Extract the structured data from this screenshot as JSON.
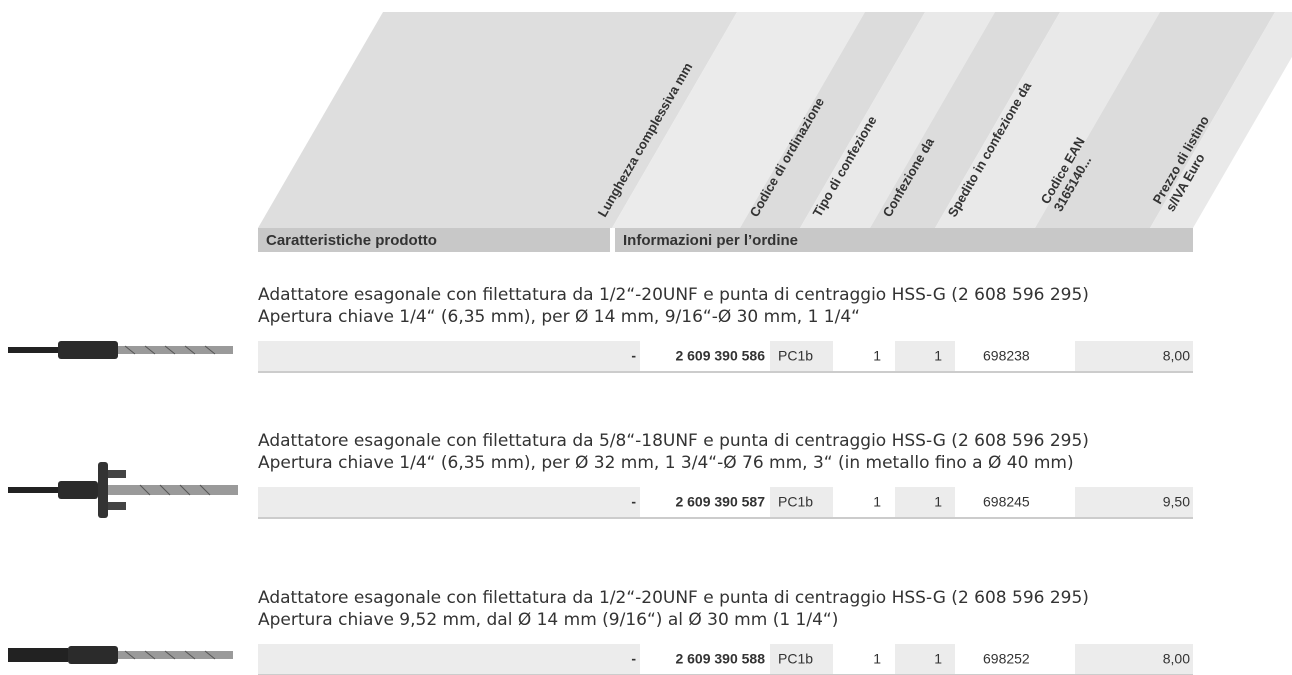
{
  "header": {
    "columns": [
      [
        "Lunghezza complessiva mm"
      ],
      [
        "Codice di ordinazione"
      ],
      [
        "Tipo di confezione"
      ],
      [
        "Confezione da"
      ],
      [
        "Spedito in confezione da"
      ],
      [
        "Codice EAN",
        "3165140..."
      ],
      [
        "Prezzo di listino",
        "s/IVA Euro"
      ]
    ],
    "sections": [
      "Caratteristiche prodotto",
      "Informazioni per l’ordine"
    ]
  },
  "products": [
    {
      "description": [
        "Adattatore esagonale con filettatura da 1/2“-20UNF e punta di centraggio HSS-G (2 608 596 295)",
        "Apertura chiave 1/4“ (6,35 mm), per Ø 14 mm, 9/16“-Ø 30 mm, 1 1/4“"
      ],
      "row": [
        "-",
        "2 609 390 586",
        "PC1b",
        "1",
        "1",
        "698238",
        "8,00"
      ]
    },
    {
      "description": [
        "Adattatore esagonale con filettatura da 5/8“-18UNF e punta di centraggio HSS-G (2 608 596 295)",
        "Apertura chiave 1/4“ (6,35 mm), per Ø 32 mm, 1 3/4“-Ø 76 mm, 3“ (in metallo fino a Ø 40 mm)"
      ],
      "row": [
        "-",
        "2 609 390 587",
        "PC1b",
        "1",
        "1",
        "698245",
        "9,50"
      ]
    },
    {
      "description": [
        "Adattatore esagonale con filettatura da 1/2“-20UNF e punta di centraggio HSS-G (2 608 596 295)",
        "Apertura chiave 9,52 mm, dal Ø 14 mm (9/16“) al Ø 30 mm (1 1/4“)"
      ],
      "row": [
        "-",
        "2 609 390 588",
        "PC1b",
        "1",
        "1",
        "698252",
        "8,00"
      ]
    }
  ]
}
